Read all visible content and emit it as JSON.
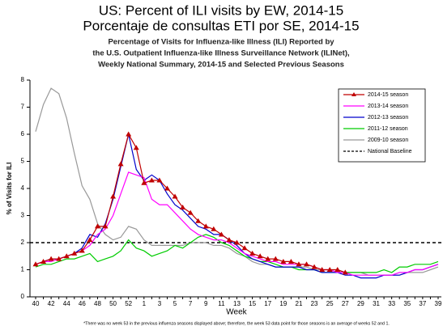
{
  "chart_data": {
    "type": "line",
    "title": [
      "US: Percent of ILI visits by EW, 2014-15",
      "Porcentaje de consultas ETI por SE, 2014-15"
    ],
    "subtitle": [
      "Percentage of Visits for Influenza-like Illness (ILI) Reported by",
      "the U.S. Outpatient Influenza-like Illness Surveillance Network (ILINet),",
      "Weekly National Summary, 2014-15 and Selected Previous Seasons"
    ],
    "y_label": "% of Visits for ILI",
    "x_label": "Week",
    "footnote": "*There was no week 53 in the previous influenza seasons displayed above; therefore, the week 53 data point for those seasons is an average of weeks 52 and 1.",
    "categories": [
      "40",
      null,
      "42",
      null,
      "44",
      null,
      "46",
      null,
      "48",
      null,
      "50",
      null,
      "52",
      null,
      "1",
      null,
      "3",
      null,
      "5",
      null,
      "7",
      null,
      "9",
      null,
      "11",
      null,
      "13",
      null,
      "15",
      null,
      "17",
      null,
      "19",
      null,
      "21",
      null,
      "23",
      null,
      "25",
      null,
      "27",
      null,
      "29",
      null,
      "31",
      null,
      "33",
      null,
      "35",
      null,
      "37",
      null,
      "39"
    ],
    "ylim": [
      0,
      8
    ],
    "yticks": [
      0,
      1,
      2,
      3,
      4,
      5,
      6,
      7,
      8
    ],
    "legend": "upper right",
    "series": [
      {
        "name": "2014-15 season",
        "color": "#c00000",
        "marker": "triangle",
        "values": [
          1.2,
          1.3,
          1.4,
          1.4,
          1.5,
          1.6,
          1.7,
          2.1,
          2.6,
          2.6,
          3.7,
          4.9,
          6.0,
          5.5,
          4.2,
          4.3,
          4.3,
          4.0,
          3.7,
          3.3,
          3.1,
          2.8,
          2.6,
          2.5,
          2.3,
          2.1,
          2.0,
          1.8,
          1.6,
          1.5,
          1.4,
          1.4,
          1.3,
          1.3,
          1.2,
          1.2,
          1.1,
          1.0,
          1.0,
          1.0,
          0.9,
          null,
          null,
          null,
          null,
          null,
          null,
          null,
          null,
          null,
          null,
          null,
          null
        ]
      },
      {
        "name": "2013-14 season",
        "color": "#ff00ff",
        "values": [
          1.2,
          1.3,
          1.3,
          1.4,
          1.5,
          1.6,
          1.7,
          1.9,
          2.3,
          2.5,
          3.0,
          3.8,
          4.6,
          4.5,
          4.4,
          3.6,
          3.4,
          3.4,
          3.1,
          2.8,
          2.5,
          2.3,
          2.2,
          2.1,
          2.1,
          2.0,
          1.8,
          1.6,
          1.5,
          1.4,
          1.3,
          1.3,
          1.2,
          1.2,
          1.2,
          1.2,
          1.1,
          1.0,
          1.0,
          0.9,
          0.9,
          0.8,
          0.8,
          0.8,
          0.8,
          0.8,
          0.8,
          0.9,
          0.9,
          1.0,
          1.0,
          1.1,
          1.2
        ]
      },
      {
        "name": "2012-13 season",
        "color": "#0000cc",
        "values": [
          1.2,
          1.3,
          1.4,
          1.4,
          1.5,
          1.6,
          1.8,
          2.3,
          2.2,
          2.7,
          3.6,
          4.8,
          6.0,
          4.7,
          4.3,
          4.5,
          4.3,
          3.8,
          3.4,
          3.2,
          2.9,
          2.6,
          2.5,
          2.3,
          2.3,
          2.1,
          1.9,
          1.6,
          1.4,
          1.3,
          1.2,
          1.1,
          1.1,
          1.1,
          1.1,
          1.0,
          1.0,
          0.9,
          0.9,
          0.9,
          0.8,
          0.8,
          0.7,
          0.7,
          0.7,
          0.8,
          0.8,
          0.8,
          0.9,
          1.0,
          1.0,
          1.1,
          1.2
        ]
      },
      {
        "name": "2011-12 season",
        "color": "#00cc00",
        "values": [
          1.1,
          1.2,
          1.2,
          1.3,
          1.4,
          1.4,
          1.5,
          1.6,
          1.3,
          1.4,
          1.5,
          1.7,
          2.1,
          1.8,
          1.7,
          1.5,
          1.6,
          1.7,
          1.9,
          1.8,
          2.0,
          2.2,
          2.3,
          2.2,
          2.0,
          1.9,
          1.7,
          1.5,
          1.4,
          1.3,
          1.3,
          1.2,
          1.1,
          1.1,
          1.0,
          1.0,
          1.0,
          0.9,
          0.9,
          0.9,
          0.9,
          0.9,
          0.9,
          0.9,
          0.9,
          1.0,
          0.9,
          1.1,
          1.1,
          1.2,
          1.2,
          1.2,
          1.3
        ]
      },
      {
        "name": "2009-10 season",
        "color": "#999999",
        "values": [
          6.1,
          7.1,
          7.7,
          7.5,
          6.6,
          5.3,
          4.1,
          3.6,
          2.7,
          2.3,
          2.1,
          2.2,
          2.6,
          2.5,
          2.1,
          1.9,
          1.9,
          1.9,
          1.9,
          1.9,
          2.0,
          2.0,
          2.0,
          1.9,
          1.9,
          1.8,
          1.6,
          1.5,
          1.3,
          1.2,
          1.2,
          1.1,
          1.1,
          1.1,
          1.1,
          1.1,
          1.0,
          1.0,
          1.0,
          1.0,
          0.9,
          0.9,
          0.9,
          0.8,
          0.8,
          0.8,
          0.8,
          0.8,
          0.9,
          0.9,
          0.9,
          1.0,
          1.1
        ]
      }
    ],
    "baseline": {
      "name": "National Baseline",
      "value": 2,
      "color": "#000000"
    }
  }
}
